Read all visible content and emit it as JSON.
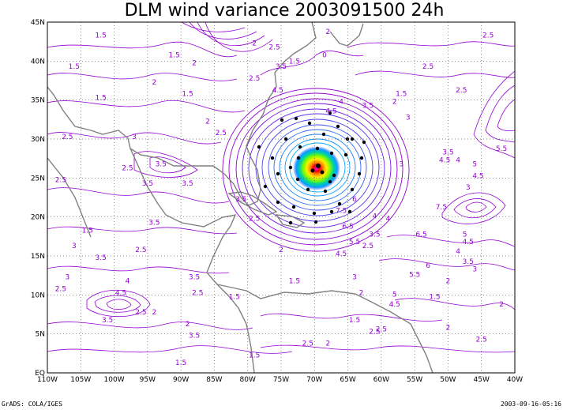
{
  "title": "DLM wind variance 2003091500 24h",
  "footer_left": "GrADS: COLA/IGES",
  "footer_right": "2003-09-16-05:16",
  "map": {
    "lon_range": [
      -110,
      -40
    ],
    "lat_range": [
      0,
      45
    ],
    "lat_labels": [
      "EQ",
      "5N",
      "10N",
      "15N",
      "20N",
      "25N",
      "30N",
      "35N",
      "40N",
      "45N"
    ],
    "lon_labels": [
      "110W",
      "105W",
      "100W",
      "95W",
      "90W",
      "85W",
      "80W",
      "75W",
      "70W",
      "65W",
      "60W",
      "55W",
      "50W",
      "45W",
      "40W"
    ],
    "grid": "dotted",
    "colors": {
      "contour": "#9400d3",
      "coast": "#808080",
      "grid": "#555555"
    }
  },
  "contour_labels": [
    {
      "text": "1.5",
      "lon": -102,
      "lat": 43
    },
    {
      "text": "1.5",
      "lon": -106,
      "lat": 39
    },
    {
      "text": "1.5",
      "lon": -91,
      "lat": 40.5
    },
    {
      "text": "2",
      "lon": -94,
      "lat": 37
    },
    {
      "text": "2",
      "lon": -88,
      "lat": 39.5
    },
    {
      "text": "2.5",
      "lon": -79,
      "lat": 37.5
    },
    {
      "text": "2.5",
      "lon": -76,
      "lat": 41.5
    },
    {
      "text": "3.5",
      "lon": -75,
      "lat": 39
    },
    {
      "text": "4.5",
      "lon": -75.5,
      "lat": 36
    },
    {
      "text": "2",
      "lon": -79,
      "lat": 42
    },
    {
      "text": "2.5",
      "lon": -44,
      "lat": 43
    },
    {
      "text": "2.5",
      "lon": -48,
      "lat": 36
    },
    {
      "text": "2.5",
      "lon": -53,
      "lat": 39
    },
    {
      "text": "3",
      "lon": -56,
      "lat": 32.5
    },
    {
      "text": "1.5",
      "lon": -102,
      "lat": 35
    },
    {
      "text": "1.5",
      "lon": -89,
      "lat": 35.5
    },
    {
      "text": "2",
      "lon": -86,
      "lat": 32
    },
    {
      "text": "2.5",
      "lon": -84,
      "lat": 30.5
    },
    {
      "text": "2.5",
      "lon": -107,
      "lat": 30
    },
    {
      "text": "3",
      "lon": -97,
      "lat": 30
    },
    {
      "text": "2.5",
      "lon": -98,
      "lat": 26
    },
    {
      "text": "3.5",
      "lon": -93,
      "lat": 26.5
    },
    {
      "text": "2.5",
      "lon": -108,
      "lat": 24.5
    },
    {
      "text": "3.5",
      "lon": -95,
      "lat": 24
    },
    {
      "text": "3.5",
      "lon": -89,
      "lat": 24
    },
    {
      "text": "3.5",
      "lon": -81,
      "lat": 22
    },
    {
      "text": "2.5",
      "lon": -79,
      "lat": 19.5
    },
    {
      "text": "3.5",
      "lon": -94,
      "lat": 19
    },
    {
      "text": "1.5",
      "lon": -104,
      "lat": 18
    },
    {
      "text": "2.5",
      "lon": -96,
      "lat": 15.5
    },
    {
      "text": "3.5",
      "lon": -102,
      "lat": 14.5
    },
    {
      "text": "3",
      "lon": -106,
      "lat": 16
    },
    {
      "text": "3",
      "lon": -107,
      "lat": 12
    },
    {
      "text": "2.5",
      "lon": -108,
      "lat": 10.5
    },
    {
      "text": "4",
      "lon": -98,
      "lat": 11.5
    },
    {
      "text": "4.5",
      "lon": -99,
      "lat": 10
    },
    {
      "text": "3.5",
      "lon": -101,
      "lat": 6.5
    },
    {
      "text": "2.5",
      "lon": -96,
      "lat": 7.5
    },
    {
      "text": "2",
      "lon": -94,
      "lat": 7.5
    },
    {
      "text": "3.5",
      "lon": -88,
      "lat": 12
    },
    {
      "text": "2.5",
      "lon": -87.5,
      "lat": 10
    },
    {
      "text": "2",
      "lon": -89,
      "lat": 6
    },
    {
      "text": "3.5",
      "lon": -88,
      "lat": 4.5
    },
    {
      "text": "1.5",
      "lon": -90,
      "lat": 1
    },
    {
      "text": "1.5",
      "lon": -82,
      "lat": 9.5
    },
    {
      "text": "1.5",
      "lon": -79,
      "lat": 2
    },
    {
      "text": "2",
      "lon": -75,
      "lat": 15.5
    },
    {
      "text": "1.5",
      "lon": -73,
      "lat": 11.5
    },
    {
      "text": "2.5",
      "lon": -71,
      "lat": 3.5
    },
    {
      "text": "2",
      "lon": -68,
      "lat": 3.5
    },
    {
      "text": "1.5",
      "lon": -64,
      "lat": 6.5
    },
    {
      "text": "2.5",
      "lon": -61,
      "lat": 5
    },
    {
      "text": "4.5",
      "lon": -66,
      "lat": 15
    },
    {
      "text": "5.5",
      "lon": -64,
      "lat": 16.5
    },
    {
      "text": "6.5",
      "lon": -65,
      "lat": 18.5
    },
    {
      "text": "7.5",
      "lon": -66,
      "lat": 20.5
    },
    {
      "text": "6",
      "lon": -64,
      "lat": 22
    },
    {
      "text": "4",
      "lon": -59,
      "lat": 19.5
    },
    {
      "text": "3.5",
      "lon": -61,
      "lat": 17.5
    },
    {
      "text": "2.5",
      "lon": -62,
      "lat": 16
    },
    {
      "text": "3",
      "lon": -64,
      "lat": 12
    },
    {
      "text": "2",
      "lon": -63,
      "lat": 10
    },
    {
      "text": "4.5",
      "lon": -58,
      "lat": 8.5
    },
    {
      "text": "5",
      "lon": -58,
      "lat": 9.8
    },
    {
      "text": "5.5",
      "lon": -55,
      "lat": 12.3
    },
    {
      "text": "6",
      "lon": -53,
      "lat": 13.5
    },
    {
      "text": "6.5",
      "lon": -54,
      "lat": 17.5
    },
    {
      "text": "5",
      "lon": -47.5,
      "lat": 17.5
    },
    {
      "text": "4.5",
      "lon": -47,
      "lat": 16.5
    },
    {
      "text": "4",
      "lon": -48.5,
      "lat": 15.3
    },
    {
      "text": "3.5",
      "lon": -47,
      "lat": 14
    },
    {
      "text": "3",
      "lon": -46,
      "lat": 13
    },
    {
      "text": "2",
      "lon": -50,
      "lat": 11.5
    },
    {
      "text": "1.5",
      "lon": -52,
      "lat": 9.5
    },
    {
      "text": "2",
      "lon": -50,
      "lat": 5.5
    },
    {
      "text": "2.5",
      "lon": -45,
      "lat": 4
    },
    {
      "text": "2",
      "lon": -42,
      "lat": 8.5
    },
    {
      "text": "2.5",
      "lon": -60,
      "lat": 5.3
    },
    {
      "text": "3",
      "lon": -47,
      "lat": 23.5
    },
    {
      "text": "3.5",
      "lon": -50,
      "lat": 28
    },
    {
      "text": "4.5",
      "lon": -50.5,
      "lat": 27
    },
    {
      "text": "4",
      "lon": -48.5,
      "lat": 27
    },
    {
      "text": "5",
      "lon": -46,
      "lat": 26.5
    },
    {
      "text": "5.5",
      "lon": -42,
      "lat": 28.5
    },
    {
      "text": "7.5",
      "lon": -51,
      "lat": 21
    },
    {
      "text": "4.5",
      "lon": -45.5,
      "lat": 25
    },
    {
      "text": "3",
      "lon": -57,
      "lat": 26.5
    },
    {
      "text": "4",
      "lon": -61,
      "lat": 19.8
    },
    {
      "text": "3.5",
      "lon": -62,
      "lat": 34
    },
    {
      "text": "4",
      "lon": -66,
      "lat": 34.5
    },
    {
      "text": "4.5",
      "lon": -67.5,
      "lat": 33.3
    },
    {
      "text": "1.5",
      "lon": -57,
      "lat": 35.5
    },
    {
      "text": "2",
      "lon": -58,
      "lat": 34.5
    },
    {
      "text": "2",
      "lon": -68,
      "lat": 43.5
    },
    {
      "text": "0",
      "lon": -68.5,
      "lat": 40.5
    },
    {
      "text": "1.5",
      "lon": -73,
      "lat": 39.7
    }
  ]
}
